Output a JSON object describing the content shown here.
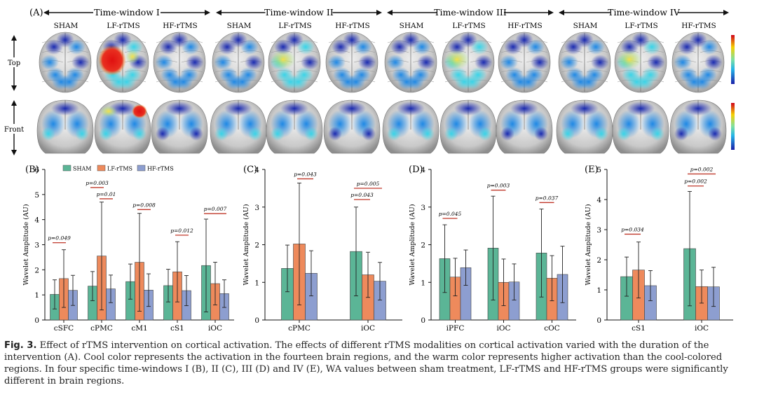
{
  "panel_a": {
    "label": "(A)",
    "windows": [
      "Time-window I",
      "Time-window II",
      "Time-window III",
      "Time-window IV"
    ],
    "groups": [
      "SHAM",
      "LF-rTMS",
      "HF-rTMS"
    ],
    "row_labels": [
      "Top",
      "Front"
    ]
  },
  "legend": [
    "SHAM",
    "LF-rTMS",
    "HF-rTMS"
  ],
  "colors": {
    "sham": "#5bb596",
    "lf": "#ee8a5c",
    "hf": "#8d9ed0",
    "sig": "#c0392b"
  },
  "caption": {
    "label": "Fig. 3.",
    "text": "Effect of rTMS intervention on cortical activation. The effects of different rTMS modalities on cortical activation varied with the duration of the intervention (A). Cool color represents the activation in the fourteen brain regions, and the warm color represents higher activation than the cool-colored regions. In four specific time-windows I (B), II (C), III (D) and IV (E), WA values between sham treatment, LF-rTMS and HF-rTMS groups were significantly different in brain regions."
  },
  "chart_data": [
    {
      "type": "bar",
      "panel": "(B)",
      "ylabel": "Wavelet Amplitude (AU)",
      "ylim": [
        0,
        6
      ],
      "yticks": [
        0,
        1,
        2,
        3,
        4,
        5,
        6
      ],
      "categories": [
        "cSFC",
        "cPMC",
        "cM1",
        "cS1",
        "iOC"
      ],
      "series": [
        {
          "name": "SHAM",
          "values": [
            1.02,
            1.35,
            1.53,
            1.37,
            2.17
          ],
          "err": [
            0.58,
            0.58,
            0.7,
            0.65,
            1.85
          ]
        },
        {
          "name": "LF-rTMS",
          "values": [
            1.65,
            2.55,
            2.3,
            1.92,
            1.45
          ],
          "err": [
            1.15,
            2.15,
            1.95,
            1.2,
            0.85
          ]
        },
        {
          "name": "HF-rTMS",
          "values": [
            1.18,
            1.24,
            1.19,
            1.17,
            1.05
          ],
          "err": [
            0.6,
            0.55,
            0.65,
            0.6,
            0.55
          ]
        }
      ],
      "annotations": [
        {
          "cat": 0,
          "pair": "sham-lf",
          "text": "p=0.049",
          "y": 3.08
        },
        {
          "cat": 1,
          "pair": "sham-lf",
          "text": "p=0.003",
          "y": 5.28
        },
        {
          "cat": 1,
          "pair": "lf-hf",
          "text": "p=0.01",
          "y": 4.83
        },
        {
          "cat": 2,
          "pair": "lf-hf",
          "text": "p=0.008",
          "y": 4.4
        },
        {
          "cat": 3,
          "pair": "lf-hf",
          "text": "p=0.012",
          "y": 3.38
        },
        {
          "cat": 4,
          "pair": "sham-hf",
          "text": "p=0.007",
          "y": 4.24
        }
      ]
    },
    {
      "type": "bar",
      "panel": "(C)",
      "ylabel": "Wavelet Amplitude (AU)",
      "ylim": [
        0,
        4
      ],
      "yticks": [
        0,
        1,
        2,
        3,
        4
      ],
      "categories": [
        "cPMC",
        "iOC"
      ],
      "series": [
        {
          "name": "SHAM",
          "values": [
            1.37,
            1.82
          ],
          "err": [
            0.62,
            1.18
          ]
        },
        {
          "name": "LF-rTMS",
          "values": [
            2.02,
            1.2
          ],
          "err": [
            1.62,
            0.6
          ]
        },
        {
          "name": "HF-rTMS",
          "values": [
            1.24,
            1.03
          ],
          "err": [
            0.6,
            0.5
          ]
        }
      ],
      "annotations": [
        {
          "cat": 0,
          "pair": "lf-hf",
          "text": "p=0.043",
          "y": 3.75
        },
        {
          "cat": 1,
          "pair": "sham-hf",
          "text": "p=0.005",
          "y": 3.5
        },
        {
          "cat": 1,
          "pair": "sham-lf",
          "text": "p=0.043",
          "y": 3.2
        }
      ]
    },
    {
      "type": "bar",
      "panel": "(D)",
      "ylabel": "Wavelet Amplitude (AU)",
      "ylim": [
        0,
        4
      ],
      "yticks": [
        0,
        1,
        2,
        3,
        4
      ],
      "categories": [
        "iPFC",
        "iOC",
        "cOC"
      ],
      "series": [
        {
          "name": "SHAM",
          "values": [
            1.63,
            1.91,
            1.78
          ],
          "err": [
            0.9,
            1.38,
            1.17
          ]
        },
        {
          "name": "LF-rTMS",
          "values": [
            1.14,
            1.0,
            1.11
          ],
          "err": [
            0.5,
            0.62,
            0.6
          ]
        },
        {
          "name": "HF-rTMS",
          "values": [
            1.39,
            1.01,
            1.21
          ],
          "err": [
            0.47,
            0.48,
            0.75
          ]
        }
      ],
      "annotations": [
        {
          "cat": 0,
          "pair": "sham-lf",
          "text": "p=0.045",
          "y": 2.7
        },
        {
          "cat": 1,
          "pair": "sham-lf",
          "text": "p=0.003",
          "y": 3.45
        },
        {
          "cat": 2,
          "pair": "sham-lf",
          "text": "p=0.037",
          "y": 3.12
        }
      ]
    },
    {
      "type": "bar",
      "panel": "(E)",
      "ylabel": "Wavelet Amplitude (AU)",
      "ylim": [
        0,
        5
      ],
      "yticks": [
        0,
        1,
        2,
        3,
        4,
        5
      ],
      "categories": [
        "cS1",
        "iOC"
      ],
      "series": [
        {
          "name": "SHAM",
          "values": [
            1.44,
            2.37
          ],
          "err": [
            0.65,
            1.9
          ]
        },
        {
          "name": "LF-rTMS",
          "values": [
            1.66,
            1.11
          ],
          "err": [
            0.93,
            0.55
          ]
        },
        {
          "name": "HF-rTMS",
          "values": [
            1.14,
            1.1
          ],
          "err": [
            0.5,
            0.65
          ]
        }
      ],
      "annotations": [
        {
          "cat": 0,
          "pair": "sham-lf",
          "text": "p=0.034",
          "y": 2.85
        },
        {
          "cat": 1,
          "pair": "sham-hf",
          "text": "p=0.002",
          "y": 4.85
        },
        {
          "cat": 1,
          "pair": "sham-lf",
          "text": "p=0.002",
          "y": 4.45
        }
      ]
    }
  ]
}
